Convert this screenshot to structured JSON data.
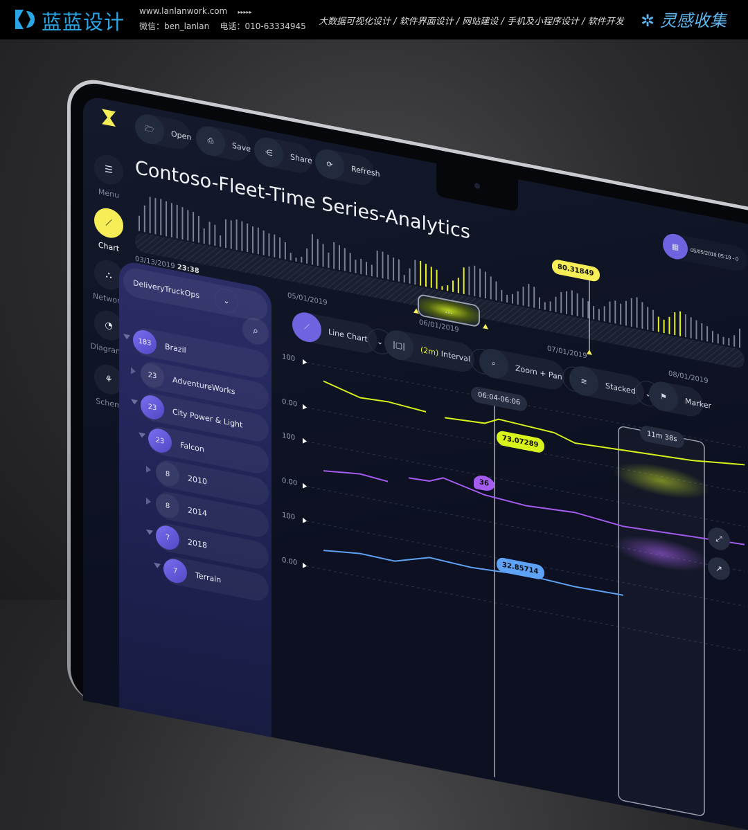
{
  "banner": {
    "brand": "蓝蓝设计",
    "website": "www.lanlanwork.com",
    "arrows": "▸▸▸▸▸",
    "wechat": "微信：ben_lanlan",
    "phone": "电话：010-63334945",
    "services": "大数据可视化设计 / 软件界面设计 / 网站建设 / 手机及小程序设计 / 软件开发",
    "inspiration": "灵感收集"
  },
  "sidebar": {
    "items": [
      {
        "label": "Menu",
        "icon": "menu-icon",
        "active": false
      },
      {
        "label": "Chart",
        "icon": "chart-icon",
        "active": true
      },
      {
        "label": "Network",
        "icon": "network-icon",
        "active": false
      },
      {
        "label": "Diagrams",
        "icon": "pie-icon",
        "active": false
      },
      {
        "label": "Schem",
        "icon": "schema-icon",
        "active": false
      }
    ]
  },
  "toolbar": {
    "open": "Open",
    "save": "Save",
    "share": "Share",
    "refresh": "Refresh"
  },
  "page_title": "Contoso-Fleet-Time Series-Analytics",
  "date_range": "05/05/2019 05:19 - 0",
  "timeline": {
    "start_date": "03/13/2019",
    "start_time": "23:38",
    "ticks": [
      "05/01/2019",
      "06/01/2019",
      "07/01/2019",
      "08/01/2019"
    ],
    "brush_label": "...",
    "marker_value": "80.31849",
    "bars": [
      40,
      70,
      95,
      95,
      95,
      92,
      90,
      88,
      85,
      80,
      78,
      70,
      40,
      60,
      55,
      30,
      75,
      75,
      80,
      78,
      75,
      70,
      70,
      65,
      60,
      60,
      55,
      45,
      20,
      10,
      15,
      40,
      80,
      70,
      60,
      40,
      70,
      65,
      60,
      50,
      35,
      40,
      35,
      30,
      70,
      70,
      65,
      60,
      58,
      20,
      40,
      65,
      65,
      60,
      55,
      50,
      10,
      15,
      30,
      40,
      70,
      75,
      80,
      75,
      70,
      60,
      50,
      30,
      20,
      25,
      35,
      50,
      60,
      55,
      30,
      20,
      25,
      40,
      55,
      60,
      65,
      60,
      50,
      45,
      35,
      30,
      40,
      55,
      60,
      55,
      65,
      75,
      80,
      70,
      60,
      55,
      40,
      35,
      45,
      60,
      65,
      60,
      55,
      50,
      45,
      40,
      30,
      25,
      20,
      20,
      30,
      50
    ],
    "highlight_ranges": [
      [
        52,
        60
      ],
      [
        96,
        100
      ]
    ]
  },
  "tree": {
    "dataset": "DeliveryTruckOps",
    "items": [
      {
        "count": "183",
        "label": "Brazil",
        "level": 0,
        "expanded": true,
        "active": true
      },
      {
        "count": "23",
        "label": "AdventureWorks",
        "level": 1,
        "expanded": false,
        "active": false
      },
      {
        "count": "23",
        "label": "City Power & Light",
        "level": 1,
        "expanded": true,
        "active": true
      },
      {
        "count": "23",
        "label": "Falcon",
        "level": 2,
        "expanded": true,
        "active": true
      },
      {
        "count": "8",
        "label": "2010",
        "level": 3,
        "expanded": false,
        "active": false
      },
      {
        "count": "8",
        "label": "2014",
        "level": 3,
        "expanded": false,
        "active": false
      },
      {
        "count": "7",
        "label": "2018",
        "level": 3,
        "expanded": true,
        "active": true
      },
      {
        "count": "7",
        "label": "Terrain",
        "level": 4,
        "expanded": true,
        "active": true
      }
    ]
  },
  "chart_toolbar": {
    "chart_type": "Line Chart",
    "interval_value": "(2m)",
    "interval": "Interval",
    "zoom": "Zoom + Pan",
    "stack": "Stacked",
    "marker": "Marker"
  },
  "chart_data": {
    "type": "line",
    "y_ticks": [
      "100",
      "0.00"
    ],
    "cursor_time": "06:04-06:06",
    "selection_duration": "11m 38s",
    "series": [
      {
        "color": "#d8f21c",
        "x": [
          467,
          520,
          560,
          615,
          null,
          642,
          700,
          720,
          760,
          800,
          830,
          900,
          1000,
          1080
        ],
        "values": [
          66,
          45,
          48,
          42,
          null,
          37,
          42,
          57,
          54,
          51,
          37,
          42,
          49,
          62
        ],
        "callout": "73.07289"
      },
      {
        "color": "#a45cf0",
        "x": [
          467,
          520,
          560,
          null,
          590,
          620,
          640,
          700,
          760,
          830,
          900,
          1000,
          1080
        ],
        "values": [
          42,
          51,
          46,
          null,
          63,
          65,
          78,
          58,
          52,
          58,
          48,
          55,
          60
        ],
        "callout": "36"
      },
      {
        "color": "#5ea2f5",
        "x": [
          467,
          520,
          570,
          620,
          680,
          720,
          760,
          830,
          900
        ],
        "values": [
          42,
          51,
          49,
          72,
          68,
          71,
          75,
          70,
          72
        ],
        "callout": "32.85714"
      }
    ]
  },
  "colors": {
    "accent": "#f6ee57",
    "lime": "#d8f21c",
    "purple": "#6f63e0"
  }
}
